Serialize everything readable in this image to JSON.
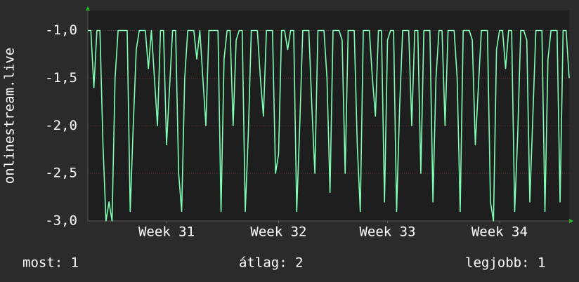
{
  "chart_data": {
    "type": "line",
    "y_label": "onlinestream.live",
    "ylim": [
      -3,
      -0.79
    ],
    "yticks": [
      {
        "value": -3,
        "label": "-3,0"
      },
      {
        "value": -2.5,
        "label": "-2,5"
      },
      {
        "value": -2,
        "label": "-2,0"
      },
      {
        "value": -1.5,
        "label": "-1,5"
      },
      {
        "value": -1,
        "label": "-1,0"
      }
    ],
    "xlim": [
      0,
      159
    ],
    "xticks": [
      {
        "value": 26,
        "label": "Week 31"
      },
      {
        "value": 63,
        "label": "Week 32"
      },
      {
        "value": 99,
        "label": "Week 33"
      },
      {
        "value": 136,
        "label": "Week 34"
      }
    ],
    "grid": true,
    "color": "#80ffb4",
    "values": [
      -1,
      -1,
      -1.6,
      -1,
      -1,
      -2.2,
      -3,
      -2.8,
      -3,
      -1.5,
      -1,
      -1,
      -1,
      -1,
      -2.9,
      -2,
      -1.2,
      -1,
      -1,
      -1,
      -1.4,
      -1,
      -1.5,
      -2,
      -1,
      -1,
      -2.2,
      -1.6,
      -1,
      -1,
      -2.5,
      -2.9,
      -1.5,
      -1,
      -1,
      -1,
      -1.3,
      -1,
      -1.5,
      -2,
      -1,
      -1,
      -1,
      -1,
      -2.9,
      -1.3,
      -1,
      -1,
      -2,
      -1.1,
      -1,
      -1,
      -2.9,
      -2.1,
      -1,
      -1,
      -1,
      -1.5,
      -1.9,
      -1,
      -1,
      -1,
      -2.5,
      -2.3,
      -1,
      -1,
      -1.2,
      -1,
      -1,
      -2.9,
      -2,
      -1,
      -1,
      -1,
      -1.8,
      -2.5,
      -1,
      -1,
      -1,
      -1.5,
      -2.7,
      -1,
      -1,
      -1,
      -1.1,
      -2.5,
      -1,
      -1,
      -1,
      -2.2,
      -2.9,
      -1,
      -1,
      -1,
      -1.5,
      -1.9,
      -1,
      -1,
      -2.8,
      -1.1,
      -1,
      -1,
      -2.9,
      -1.8,
      -1,
      -1,
      -1,
      -2,
      -1,
      -1,
      -2.5,
      -1,
      -1,
      -1,
      -2.8,
      -1.5,
      -1,
      -1,
      -2,
      -1,
      -1,
      -1,
      -1.5,
      -2.9,
      -1,
      -1,
      -1,
      -1.1,
      -2.2,
      -1.6,
      -1,
      -1,
      -1,
      -2.8,
      -3,
      -1.2,
      -1,
      -1,
      -1.4,
      -1,
      -1,
      -2.9,
      -2.1,
      -1,
      -1,
      -1.1,
      -2.8,
      -1.9,
      -1,
      -1,
      -1,
      -2.9,
      -1.3,
      -1,
      -1,
      -1,
      -2.8,
      -1,
      -1,
      -1.5
    ],
    "footer": {
      "current": "most: 1",
      "average": "átlag: 2",
      "best": "legjobb: 1"
    }
  }
}
